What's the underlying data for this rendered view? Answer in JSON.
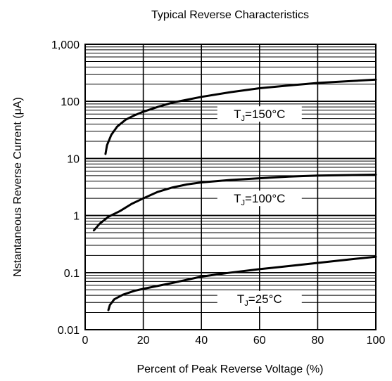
{
  "chart_data": {
    "type": "line",
    "title": "Typical Reverse Characteristics",
    "xlabel": "Percent of Peak Reverse Voltage (%)",
    "ylabel": "Nstantaneous Reverse Current (μA)",
    "xlim": [
      0,
      100
    ],
    "ylim": [
      0.01,
      1000
    ],
    "y_scale": "log",
    "grid": true,
    "x_ticks": [
      {
        "value": 0,
        "label": "0"
      },
      {
        "value": 20,
        "label": "20"
      },
      {
        "value": 40,
        "label": "40"
      },
      {
        "value": 60,
        "label": "60"
      },
      {
        "value": 80,
        "label": "80"
      },
      {
        "value": 100,
        "label": "100"
      }
    ],
    "y_ticks": [
      {
        "value": 0.01,
        "label": "0.01"
      },
      {
        "value": 0.1,
        "label": "0.1"
      },
      {
        "value": 1,
        "label": "1"
      },
      {
        "value": 10,
        "label": "10"
      },
      {
        "value": 100,
        "label": "100"
      },
      {
        "value": 1000,
        "label": "1,000"
      }
    ],
    "series": [
      {
        "name": "T_J=150°C",
        "label_main": "T",
        "label_sub": "J",
        "label_rest": "=150°C",
        "label_at": {
          "x": 60,
          "y": 60
        },
        "x": [
          7,
          7.5,
          9,
          11,
          14,
          17,
          20,
          25,
          30,
          40,
          50,
          60,
          70,
          80,
          90,
          100
        ],
        "y": [
          12,
          17,
          26,
          36,
          48,
          57,
          66,
          80,
          95,
          120,
          145,
          170,
          190,
          210,
          225,
          240
        ]
      },
      {
        "name": "T_J=100°C",
        "label_main": "T",
        "label_sub": "J",
        "label_rest": "=100°C",
        "label_at": {
          "x": 60,
          "y": 2.0
        },
        "x": [
          3,
          5,
          8,
          12,
          16,
          20,
          25,
          30,
          35,
          40,
          50,
          60,
          70,
          80,
          90,
          100
        ],
        "y": [
          0.55,
          0.72,
          0.95,
          1.2,
          1.6,
          2.0,
          2.6,
          3.1,
          3.5,
          3.8,
          4.2,
          4.5,
          4.8,
          5.0,
          5.1,
          5.2
        ]
      },
      {
        "name": "T_J=25°C",
        "label_main": "T",
        "label_sub": "J",
        "label_rest": "=25°C",
        "label_at": {
          "x": 60,
          "y": 0.035
        },
        "x": [
          8,
          8.5,
          10,
          13,
          17,
          20,
          30,
          40,
          50,
          60,
          70,
          80,
          90,
          100
        ],
        "y": [
          0.022,
          0.027,
          0.034,
          0.041,
          0.048,
          0.052,
          0.066,
          0.085,
          0.1,
          0.115,
          0.13,
          0.148,
          0.168,
          0.19
        ]
      }
    ]
  }
}
